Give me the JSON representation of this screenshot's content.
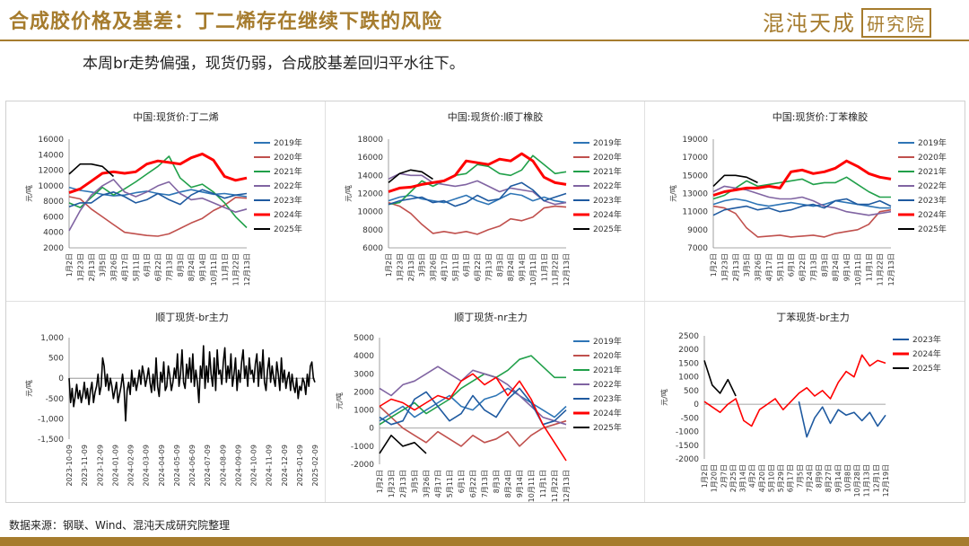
{
  "header": {
    "title": "合成胶价格及基差：丁二烯存在继续下跌的风险",
    "logo_text": "混沌天成",
    "logo_box_text": "研究院"
  },
  "subtitle": "本周br走势偏强，现货仍弱，合成胶基差回归平水往下。",
  "source": "数据来源：钢联、Wind、混沌天成研究院整理",
  "colors": {
    "2019年": "#2e75b6",
    "2020年": "#c0504d",
    "2021年": "#21a04a",
    "2022年": "#8064a2",
    "2023年": "#1f5aa0",
    "2024年": "#ff0000",
    "2025年": "#000000"
  },
  "chart_data": [
    {
      "type": "line",
      "title": "中国:现货价:丁二烯",
      "ylabel": "元/吨",
      "ylim": [
        2000,
        16000
      ],
      "yticks": [
        2000,
        4000,
        6000,
        8000,
        10000,
        12000,
        14000,
        16000
      ],
      "xlabels": [
        "1月2日",
        "1月23日",
        "2月13日",
        "3月5日",
        "3月26日",
        "4月17日",
        "5月11日",
        "6月1日",
        "6月22日",
        "7月13日",
        "8月3日",
        "8月24日",
        "9月14日",
        "10月11日",
        "11月1日",
        "11月22日",
        "12月13日"
      ],
      "legend_position": "right",
      "series": [
        {
          "name": "2019年",
          "values": [
            9800,
            9400,
            9200,
            8900,
            8700,
            8800,
            9100,
            9300,
            9000,
            8800,
            9200,
            9500,
            9200,
            8900,
            9000,
            8800,
            8600
          ]
        },
        {
          "name": "2020年",
          "values": [
            8600,
            8300,
            7000,
            6000,
            5000,
            4000,
            3800,
            3600,
            3500,
            3800,
            4500,
            5200,
            5800,
            6800,
            7500,
            8500,
            8400
          ]
        },
        {
          "name": "2021年",
          "values": [
            7800,
            7200,
            8500,
            9800,
            8800,
            9600,
            10500,
            11500,
            12500,
            13800,
            11000,
            9800,
            10200,
            9200,
            7800,
            6000,
            4600
          ]
        },
        {
          "name": "2022年",
          "values": [
            4200,
            6800,
            8800,
            10000,
            10800,
            9200,
            8600,
            9200,
            10000,
            10500,
            9000,
            8200,
            8400,
            7800,
            7200,
            6600,
            7000
          ]
        },
        {
          "name": "2023年",
          "values": [
            7300,
            7800,
            7800,
            8800,
            9200,
            8600,
            7800,
            8200,
            9000,
            8200,
            7600,
            8800,
            9500,
            9000,
            8400,
            8800,
            9000
          ]
        },
        {
          "name": "2024年",
          "values": [
            9100,
            9600,
            10600,
            11600,
            11800,
            11600,
            11800,
            12800,
            13200,
            13000,
            12800,
            13600,
            14100,
            13300,
            11200,
            10700,
            11000
          ]
        },
        {
          "name": "2025年",
          "values": [
            11500,
            12800,
            12800,
            12500,
            11200
          ]
        }
      ]
    },
    {
      "type": "line",
      "title": "中国:现货价:顺丁橡胶",
      "ylabel": "元/吨",
      "ylim": [
        6000,
        18000
      ],
      "yticks": [
        6000,
        8000,
        10000,
        12000,
        14000,
        16000,
        18000
      ],
      "xlabels": [
        "1月2日",
        "1月23日",
        "2月13日",
        "3月5日",
        "3月26日",
        "4月17日",
        "5月11日",
        "6月1日",
        "6月22日",
        "7月13日",
        "8月3日",
        "8月24日",
        "9月14日",
        "10月11日",
        "11月1日",
        "11月22日",
        "12月13日"
      ],
      "legend_position": "right",
      "series": [
        {
          "name": "2019年",
          "values": [
            11200,
            11600,
            11800,
            11400,
            11200,
            11000,
            11400,
            11800,
            11200,
            10800,
            11400,
            12000,
            11800,
            11200,
            11600,
            11200,
            11000
          ]
        },
        {
          "name": "2020年",
          "values": [
            11000,
            10600,
            9800,
            8600,
            7600,
            7800,
            7600,
            7800,
            7500,
            8000,
            8400,
            9200,
            9000,
            9400,
            10400,
            10600,
            10500
          ]
        },
        {
          "name": "2021年",
          "values": [
            10800,
            11000,
            12200,
            13400,
            12800,
            13400,
            14000,
            14200,
            15200,
            15000,
            14200,
            14000,
            14600,
            16200,
            15200,
            14200,
            14400
          ]
        },
        {
          "name": "2022年",
          "values": [
            13600,
            14200,
            14000,
            14000,
            13200,
            13000,
            12800,
            13000,
            13400,
            12800,
            12200,
            12600,
            12400,
            12200,
            11200,
            10800,
            11000
          ]
        },
        {
          "name": "2023年",
          "values": [
            10800,
            11200,
            11400,
            11600,
            11000,
            11200,
            10600,
            11000,
            11800,
            11200,
            11400,
            12800,
            13200,
            12400,
            11200,
            11600,
            12000
          ]
        },
        {
          "name": "2024年",
          "values": [
            12200,
            12600,
            12700,
            13000,
            13200,
            13400,
            14000,
            15600,
            15400,
            15200,
            15800,
            15600,
            16400,
            15600,
            13800,
            13200,
            13000
          ]
        },
        {
          "name": "2025年",
          "values": [
            13200,
            14200,
            14600,
            14400,
            13600
          ]
        }
      ]
    },
    {
      "type": "line",
      "title": "中国:现货价:丁苯橡胶",
      "ylabel": "元/吨",
      "ylim": [
        7000,
        19000
      ],
      "yticks": [
        7000,
        9000,
        11000,
        13000,
        15000,
        17000,
        19000
      ],
      "xlabels": [
        "1月2日",
        "1月23日",
        "2月13日",
        "3月5日",
        "3月26日",
        "4月17日",
        "5月11日",
        "6月1日",
        "6月22日",
        "7月13日",
        "8月3日",
        "8月24日",
        "9月14日",
        "10月11日",
        "11月1日",
        "11月22日",
        "12月13日"
      ],
      "legend_position": "right",
      "series": [
        {
          "name": "2019年",
          "values": [
            11800,
            12200,
            12400,
            12200,
            11800,
            11600,
            11800,
            12000,
            11800,
            11600,
            11800,
            12200,
            12000,
            11800,
            11600,
            11400,
            11400
          ]
        },
        {
          "name": "2020年",
          "values": [
            11600,
            11400,
            10800,
            9200,
            8200,
            8300,
            8400,
            8200,
            8300,
            8400,
            8200,
            8600,
            8800,
            9000,
            9600,
            11000,
            11200
          ]
        },
        {
          "name": "2021年",
          "values": [
            12400,
            12800,
            13600,
            14400,
            13800,
            14000,
            14200,
            14400,
            14600,
            14000,
            14200,
            14200,
            14800,
            14000,
            13200,
            12600,
            12600
          ]
        },
        {
          "name": "2022年",
          "values": [
            13200,
            13800,
            13600,
            13400,
            13000,
            12600,
            12400,
            12400,
            12600,
            12200,
            11600,
            11400,
            11000,
            10800,
            10600,
            10800,
            11000
          ]
        },
        {
          "name": "2023年",
          "values": [
            10600,
            11200,
            11400,
            11600,
            11200,
            11400,
            11000,
            11200,
            11600,
            11800,
            11400,
            12200,
            12400,
            11800,
            11800,
            12200,
            11600
          ]
        },
        {
          "name": "2024年",
          "values": [
            12800,
            13200,
            13400,
            13600,
            13600,
            13800,
            13600,
            15400,
            15600,
            15200,
            15400,
            15800,
            16600,
            16000,
            15200,
            14800,
            14600
          ]
        },
        {
          "name": "2025年",
          "values": [
            13800,
            15000,
            15000,
            14800,
            14200
          ]
        }
      ]
    },
    {
      "type": "line",
      "title": "顺丁现货-br主力",
      "ylabel": "元/吨",
      "ylim": [
        -1500,
        1000
      ],
      "yticks": [
        -1500,
        -1000,
        -500,
        0,
        500,
        1000
      ],
      "ytick_labels": [
        "-1,500",
        "-1,000",
        "-500",
        "0",
        "500",
        "1,000"
      ],
      "xlabels": [
        "2023-10-09",
        "2023-11-09",
        "2023-12-09",
        "2024-01-09",
        "2024-02-09",
        "2024-03-09",
        "2024-04-09",
        "2024-05-09",
        "2024-06-09",
        "2024-07-09",
        "2024-08-09",
        "2024-09-09",
        "2024-10-09",
        "2024-11-09",
        "2024-12-09",
        "2025-01-09",
        "2025-02-09"
      ],
      "series": [
        {
          "name": "",
          "values": [
            0,
            -600,
            -250,
            -700,
            -450,
            -150,
            -500,
            -300,
            -600,
            -400,
            -100,
            -500,
            -250,
            -650,
            -300,
            -100,
            -600,
            -350,
            -200,
            100,
            -400,
            -200,
            500,
            300,
            -200,
            100,
            -300,
            0,
            -200,
            -500,
            -300,
            -100,
            -600,
            -400,
            -200,
            100,
            -250,
            -1050,
            -300,
            -100,
            -400,
            200,
            -200,
            0,
            -300,
            -100,
            200,
            -150,
            300,
            100,
            -200,
            0,
            250,
            -100,
            -350,
            100,
            -300,
            500,
            -200,
            -450,
            150,
            -100,
            400,
            -300,
            -200,
            300,
            50,
            -300,
            -100,
            250,
            0,
            600,
            -200,
            100,
            700,
            -100,
            -250,
            350,
            0,
            500,
            -100,
            600,
            -200,
            200,
            -100,
            -600,
            300,
            0,
            800,
            -250,
            300,
            -100,
            650,
            100,
            -200,
            500,
            -300,
            700,
            100,
            200,
            -150,
            400,
            750,
            -100,
            300,
            0,
            600,
            -200,
            100,
            500,
            -300,
            200,
            -100,
            400,
            700,
            0,
            300,
            -200,
            500,
            100,
            200,
            -100,
            350,
            600,
            -200,
            400,
            0,
            700,
            -100,
            -300,
            200,
            500,
            -100,
            300,
            0,
            -200,
            400,
            100,
            -300,
            500,
            -100,
            200,
            -250,
            0,
            150,
            -300,
            100,
            -200,
            -350,
            0,
            -500,
            -200,
            -300,
            0,
            -100,
            -400,
            100,
            -200,
            300,
            400,
            0,
            -100
          ]
        }
      ]
    },
    {
      "type": "line",
      "title": "顺丁现货-nr主力",
      "ylabel": "元/吨",
      "ylim": [
        -2000,
        5000
      ],
      "yticks": [
        -2000,
        -1000,
        0,
        1000,
        2000,
        3000,
        4000,
        5000
      ],
      "xlabels": [
        "1月2日",
        "1月23日",
        "2月13日",
        "3月5日",
        "3月26日",
        "4月17日",
        "5月11日",
        "6月1日",
        "6月22日",
        "7月13日",
        "8月3日",
        "8月24日",
        "9月14日",
        "10月11日",
        "11月1日",
        "11月22日",
        "12月13日"
      ],
      "legend_position": "right",
      "series": [
        {
          "name": "2019年",
          "values": [
            400,
            800,
            1200,
            600,
            1000,
            1400,
            1800,
            1200,
            1000,
            1600,
            1800,
            2200,
            1800,
            1400,
            1000,
            600,
            1200
          ]
        },
        {
          "name": "2020年",
          "values": [
            1200,
            600,
            0,
            -400,
            -800,
            -200,
            -600,
            -1000,
            -400,
            -800,
            -600,
            -200,
            -1000,
            -400,
            0,
            200,
            400
          ]
        },
        {
          "name": "2021年",
          "values": [
            200,
            600,
            1000,
            1400,
            800,
            1200,
            1600,
            2200,
            2600,
            3000,
            2800,
            3200,
            3800,
            4000,
            3400,
            2800,
            2800
          ]
        },
        {
          "name": "2022年",
          "values": [
            2200,
            1800,
            2400,
            2600,
            3000,
            3400,
            3000,
            2600,
            3200,
            3000,
            2800,
            2400,
            1800,
            1200,
            600,
            400,
            200
          ]
        },
        {
          "name": "2023年",
          "values": [
            600,
            200,
            400,
            1600,
            2000,
            1200,
            400,
            800,
            1800,
            1000,
            600,
            1600,
            2200,
            1400,
            200,
            400,
            1000
          ]
        },
        {
          "name": "2024年",
          "values": [
            1200,
            1600,
            1400,
            1000,
            1400,
            1800,
            1600,
            2600,
            3000,
            2400,
            2800,
            1800,
            2600,
            1600,
            200,
            -800,
            -1800
          ]
        },
        {
          "name": "2025年",
          "values": [
            -1400,
            -400,
            -1000,
            -800,
            -1400
          ]
        }
      ]
    },
    {
      "type": "line",
      "title": "丁苯现货-br主力",
      "ylabel": "元/吨",
      "ylim": [
        -2000,
        2500
      ],
      "yticks": [
        -2000,
        -1500,
        -1000,
        -500,
        0,
        500,
        1000,
        1500,
        2000,
        2500
      ],
      "xlabels": [
        "1月2日",
        "1月20日",
        "2月7日",
        "2月25日",
        "3月14日",
        "4月2日",
        "4月20日",
        "5月10日",
        "5月29日",
        "6月17日",
        "7月5日",
        "7月24日",
        "8月9日",
        "8月27日",
        "9月14日",
        "10月8日",
        "10月28日",
        "11月13日",
        "12月1日",
        "12月19日"
      ],
      "legend_position": "right",
      "series": [
        {
          "name": "2023年",
          "values": [
            null,
            null,
            null,
            null,
            null,
            null,
            null,
            null,
            null,
            null,
            null,
            null,
            100,
            -1200,
            -500,
            -100,
            -700,
            -200,
            -400,
            -300,
            -600,
            -300,
            -800,
            -400
          ]
        },
        {
          "name": "2024年",
          "values": [
            100,
            -100,
            -300,
            0,
            200,
            -600,
            -800,
            -200,
            0,
            200,
            -200,
            100,
            400,
            600,
            300,
            500,
            200,
            800,
            1200,
            1000,
            1800,
            1400,
            1600,
            1500
          ]
        },
        {
          "name": "2025年",
          "values": [
            1600,
            700,
            400,
            900,
            300
          ]
        }
      ]
    }
  ]
}
